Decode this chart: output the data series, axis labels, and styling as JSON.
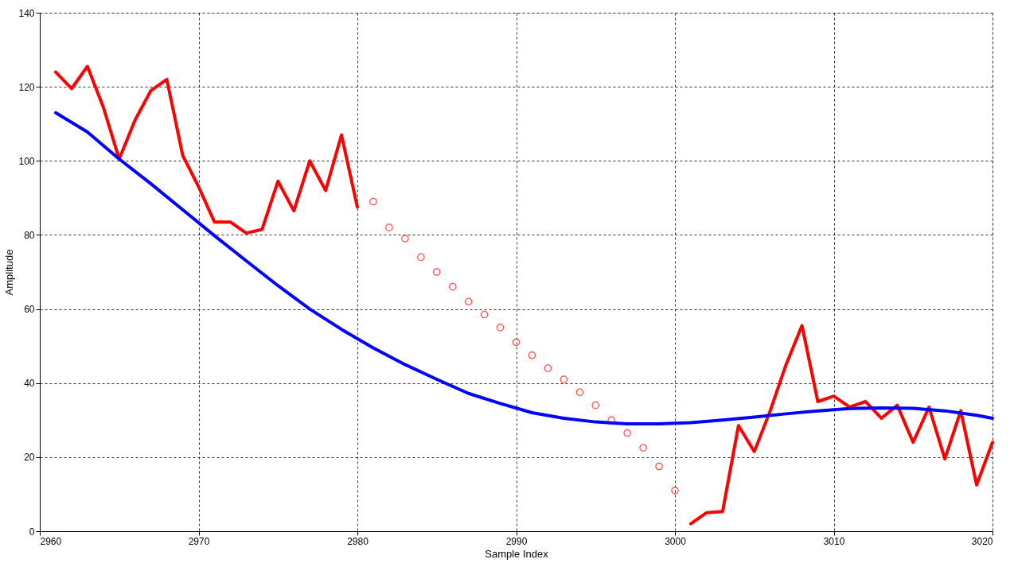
{
  "chart_data": {
    "type": "line",
    "xlabel": "Sample Index",
    "ylabel": "Amplitude",
    "xlim": [
      2960,
      3020
    ],
    "xticks": [
      2960,
      2970,
      2980,
      2990,
      3000,
      3010,
      3020
    ],
    "ylim": [
      0,
      140
    ],
    "yticks": [
      0,
      20,
      40,
      60,
      80,
      100,
      120,
      140
    ],
    "grid": true,
    "line_style": "solid",
    "series": [
      {
        "color": "#ff0000",
        "x": [
          2961,
          2962,
          2963,
          2964,
          2965,
          2966,
          2967,
          2968,
          2969,
          2970,
          2971,
          2972,
          2973,
          2974,
          2975,
          2976,
          2977,
          2978,
          2979,
          2980
        ],
        "values": [
          124,
          119.5,
          125.5,
          114.5,
          100.5,
          111,
          119,
          122,
          101.5,
          93,
          83.5,
          83.5,
          80.5,
          81.5,
          94.5,
          86.5,
          100,
          92,
          107,
          87.5
        ]
      },
      {
        "type": "scatter",
        "marker": "circle",
        "color": "#ff0000",
        "x": [
          2981,
          2982,
          2983,
          2984,
          2985,
          2986,
          2987,
          2988,
          2989,
          2990,
          2991,
          2992,
          2993,
          2994,
          2995,
          2996,
          2997,
          2998,
          2999,
          3000
        ],
        "values": [
          89,
          82,
          79,
          74,
          70,
          66,
          62,
          58.5,
          55,
          51,
          47.5,
          44,
          41,
          37.5,
          34,
          30,
          26.5,
          22.5,
          17.5,
          11
        ]
      },
      {
        "color": "#ff0000",
        "x": [
          3001,
          3002,
          3003,
          3004,
          3005,
          3006,
          3007,
          3008,
          3009,
          3010,
          3011,
          3012,
          3013,
          3014,
          3015,
          3016,
          3017,
          3018,
          3019,
          3020
        ],
        "values": [
          2,
          5,
          5.3,
          28.5,
          21.5,
          32.5,
          45,
          55.5,
          35,
          36.5,
          33.5,
          35,
          30.5,
          34,
          24,
          33.5,
          19.5,
          32.5,
          12.5,
          24
        ]
      },
      {
        "color": "#0000ff",
        "x": [
          2961,
          2963,
          2965,
          2967,
          2969,
          2971,
          2973,
          2975,
          2977,
          2979,
          2981,
          2983,
          2985,
          2987,
          2989,
          2991,
          2993,
          2995,
          2997,
          2999,
          3001,
          3003,
          3005,
          3007,
          3009,
          3011,
          3013,
          3015,
          3017,
          3019,
          3020
        ],
        "values": [
          113,
          107.8,
          100.5,
          93.8,
          86.8,
          79.8,
          73,
          66.3,
          60,
          54.5,
          49.5,
          45,
          41,
          37.2,
          34.5,
          32,
          30.5,
          29.5,
          29,
          29,
          29.3,
          30,
          30.8,
          31.7,
          32.5,
          33.1,
          33.3,
          33.2,
          32.5,
          31.3,
          30.5
        ]
      }
    ]
  }
}
